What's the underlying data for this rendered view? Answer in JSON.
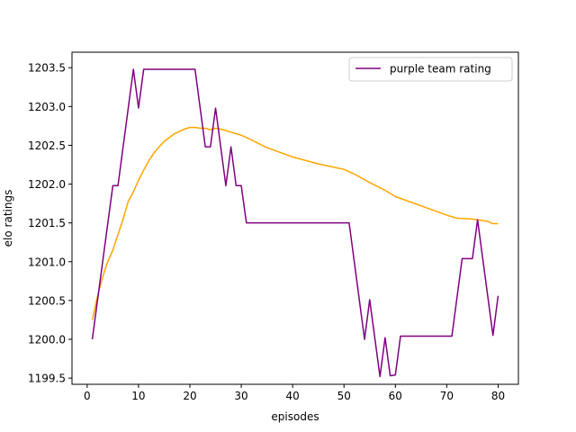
{
  "chart_data": {
    "type": "line",
    "xlabel": "episodes",
    "ylabel": "elo ratings",
    "xlim": [
      -2.95,
      83.95
    ],
    "ylim": [
      1199.42,
      1203.7
    ],
    "xticks": [
      0,
      10,
      20,
      30,
      40,
      50,
      60,
      70,
      80
    ],
    "yticks": [
      1199.5,
      1200.0,
      1200.5,
      1201.0,
      1201.5,
      1202.0,
      1202.5,
      1203.0,
      1203.5
    ],
    "ytick_labels": [
      "1199.5",
      "1200.0",
      "1200.5",
      "1201.0",
      "1201.5",
      "1202.0",
      "1202.5",
      "1203.0",
      "1203.5"
    ],
    "grid": false,
    "legend_position": "upper right",
    "series": [
      {
        "name": "purple team rating",
        "color": "#800080",
        "in_legend": true,
        "x": [
          1,
          5,
          6,
          9,
          10,
          11,
          21,
          23,
          24,
          25,
          27,
          28,
          29,
          30,
          31,
          51,
          54,
          55,
          57,
          58,
          59,
          60,
          61,
          71,
          73,
          75,
          76,
          79,
          80
        ],
        "y": [
          1200.0,
          1201.98,
          1201.98,
          1203.48,
          1202.98,
          1203.48,
          1203.48,
          1202.48,
          1202.48,
          1202.98,
          1201.98,
          1202.48,
          1201.98,
          1201.98,
          1201.5,
          1201.5,
          1200.0,
          1200.51,
          1199.52,
          1200.02,
          1199.53,
          1199.54,
          1200.04,
          1200.04,
          1201.04,
          1201.04,
          1201.54,
          1200.05,
          1200.56
        ]
      },
      {
        "name": "",
        "color": "#FFA500",
        "in_legend": false,
        "x": [
          1,
          2,
          3,
          4,
          5,
          6,
          7,
          8,
          9,
          10,
          11,
          12,
          13,
          14,
          15,
          16,
          17,
          18,
          19,
          20,
          21,
          22,
          23,
          24,
          25,
          26,
          27,
          28,
          29,
          30,
          31,
          35,
          40,
          45,
          50,
          51,
          52,
          55,
          58,
          60,
          65,
          70,
          72,
          75,
          78,
          79,
          80
        ],
        "y": [
          1200.25,
          1200.55,
          1200.8,
          1201.0,
          1201.15,
          1201.35,
          1201.55,
          1201.78,
          1201.9,
          1202.05,
          1202.18,
          1202.3,
          1202.4,
          1202.48,
          1202.55,
          1202.6,
          1202.65,
          1202.68,
          1202.71,
          1202.73,
          1202.73,
          1202.72,
          1202.72,
          1202.7,
          1202.72,
          1202.71,
          1202.69,
          1202.67,
          1202.65,
          1202.63,
          1202.6,
          1202.47,
          1202.35,
          1202.26,
          1202.19,
          1202.16,
          1202.13,
          1202.02,
          1201.92,
          1201.84,
          1201.72,
          1201.6,
          1201.56,
          1201.55,
          1201.52,
          1201.49,
          1201.49
        ]
      }
    ]
  }
}
